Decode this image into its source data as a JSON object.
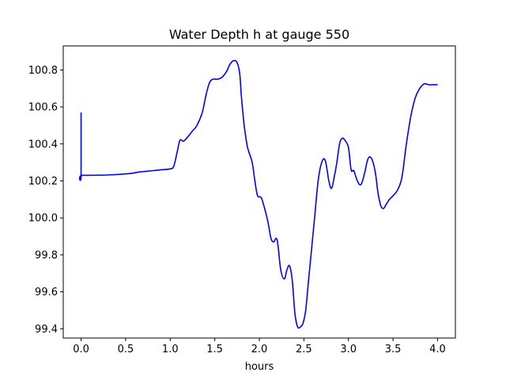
{
  "chart_data": {
    "type": "line",
    "title": "Water Depth h at gauge 550",
    "xlabel": "hours",
    "ylabel": "",
    "xlim": [
      -0.2,
      4.2
    ],
    "ylim": [
      99.35,
      100.93
    ],
    "xticks": [
      0.0,
      0.5,
      1.0,
      1.5,
      2.0,
      2.5,
      3.0,
      3.5,
      4.0
    ],
    "xtick_labels": [
      "0.0",
      "0.5",
      "1.0",
      "1.5",
      "2.0",
      "2.5",
      "3.0",
      "3.5",
      "4.0"
    ],
    "yticks": [
      99.4,
      99.6,
      99.8,
      100.0,
      100.2,
      100.4,
      100.6,
      100.8
    ],
    "ytick_labels": [
      "99.4",
      "99.6",
      "99.8",
      "100.0",
      "100.2",
      "100.4",
      "100.6",
      "100.8"
    ],
    "grid": false,
    "series": [
      {
        "color": "#0000ff",
        "x": [
          0.0,
          0.0,
          0.01,
          0.3,
          0.55,
          0.65,
          0.8,
          0.9,
          1.0,
          1.04,
          1.08,
          1.11,
          1.15,
          1.2,
          1.25,
          1.3,
          1.36,
          1.4,
          1.44,
          1.48,
          1.53,
          1.58,
          1.63,
          1.67,
          1.71,
          1.75,
          1.78,
          1.8,
          1.83,
          1.86,
          1.88,
          1.92,
          1.95,
          1.98,
          2.02,
          2.06,
          2.1,
          2.13,
          2.16,
          2.2,
          2.24,
          2.28,
          2.31,
          2.34,
          2.37,
          2.4,
          2.43,
          2.46,
          2.49,
          2.52,
          2.55,
          2.58,
          2.62,
          2.66,
          2.7,
          2.74,
          2.78,
          2.81,
          2.84,
          2.87,
          2.9,
          2.93,
          2.96,
          3.0,
          3.03,
          3.06,
          3.1,
          3.14,
          3.18,
          3.22,
          3.26,
          3.3,
          3.33,
          3.36,
          3.39,
          3.42,
          3.46,
          3.5,
          3.55,
          3.6,
          3.65,
          3.7,
          3.75,
          3.8,
          3.85,
          3.9,
          3.95,
          3.98,
          4.0
        ],
        "values": [
          100.57,
          100.23,
          100.23,
          100.232,
          100.24,
          100.248,
          100.255,
          100.26,
          100.265,
          100.28,
          100.36,
          100.42,
          100.415,
          100.44,
          100.47,
          100.5,
          100.57,
          100.66,
          100.73,
          100.75,
          100.75,
          100.76,
          100.79,
          100.83,
          100.85,
          100.84,
          100.78,
          100.65,
          100.5,
          100.4,
          100.36,
          100.3,
          100.2,
          100.12,
          100.11,
          100.05,
          99.97,
          99.89,
          99.87,
          99.88,
          99.72,
          99.67,
          99.72,
          99.74,
          99.66,
          99.48,
          99.41,
          99.41,
          99.43,
          99.5,
          99.65,
          99.8,
          100.0,
          100.2,
          100.3,
          100.31,
          100.2,
          100.16,
          100.22,
          100.3,
          100.4,
          100.43,
          100.42,
          100.38,
          100.26,
          100.255,
          100.2,
          100.18,
          100.24,
          100.32,
          100.32,
          100.25,
          100.14,
          100.07,
          100.05,
          100.07,
          100.1,
          100.12,
          100.15,
          100.22,
          100.4,
          100.55,
          100.65,
          100.7,
          100.725,
          100.72,
          100.72,
          100.72,
          100.72
        ]
      }
    ]
  }
}
